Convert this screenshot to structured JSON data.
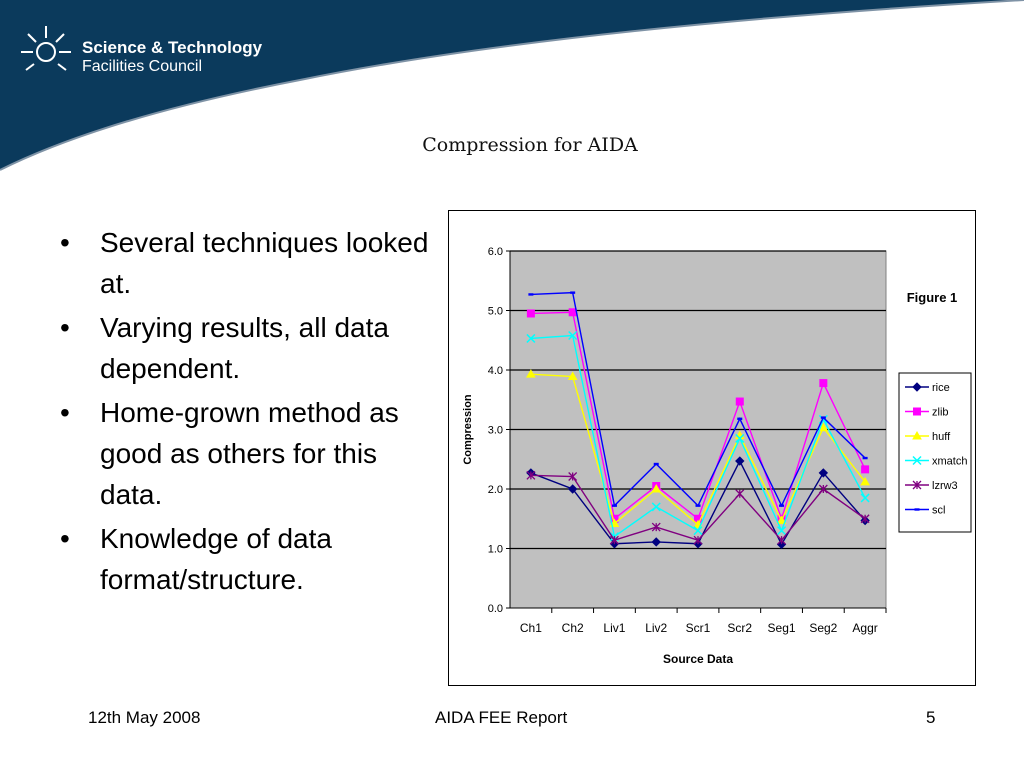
{
  "org": {
    "line1": "Science & Technology",
    "line2": "Facilities Council"
  },
  "slide": {
    "title": "Compression for AIDA",
    "bullets": [
      "Several techniques looked at.",
      "Varying results, all data dependent.",
      "Home-grown method as good as others for this data.",
      "Knowledge of data format/structure."
    ],
    "bullet_glyph": "•"
  },
  "footer": {
    "date": "12th May 2008",
    "report": "AIDA FEE Report",
    "page": "5"
  },
  "colors": {
    "banner": "#0b3a5c",
    "plot_bg": "#c0c0c0"
  },
  "chart_data": {
    "type": "line",
    "title": "",
    "annotation": "Figure 1",
    "xlabel": "Source Data",
    "ylabel": "Compression",
    "ylim": [
      0,
      6
    ],
    "yticks": [
      "0.0",
      "1.0",
      "2.0",
      "3.0",
      "4.0",
      "5.0",
      "6.0"
    ],
    "grid": true,
    "legend_position": "right",
    "categories": [
      "Ch1",
      "Ch2",
      "Liv1",
      "Liv2",
      "Scr1",
      "Scr2",
      "Seg1",
      "Seg2",
      "Aggr"
    ],
    "series": [
      {
        "name": "rice",
        "color": "#000080",
        "marker": "diamond",
        "values": [
          2.27,
          2.0,
          1.08,
          1.11,
          1.08,
          2.47,
          1.07,
          2.27,
          1.47
        ]
      },
      {
        "name": "zlib",
        "color": "#ff00ff",
        "marker": "square",
        "values": [
          4.95,
          4.97,
          1.5,
          2.05,
          1.5,
          3.47,
          1.5,
          3.78,
          2.33
        ]
      },
      {
        "name": "huff",
        "color": "#ffff00",
        "marker": "triangle",
        "values": [
          3.93,
          3.89,
          1.42,
          2.0,
          1.4,
          2.9,
          1.47,
          3.03,
          2.12
        ]
      },
      {
        "name": "xmatch",
        "color": "#00ffff",
        "marker": "x",
        "values": [
          4.53,
          4.58,
          1.2,
          1.7,
          1.3,
          2.85,
          1.3,
          3.17,
          1.85
        ]
      },
      {
        "name": "lzrw3",
        "color": "#800080",
        "marker": "star",
        "values": [
          2.23,
          2.21,
          1.14,
          1.36,
          1.14,
          1.92,
          1.14,
          2.0,
          1.5
        ]
      },
      {
        "name": "scl",
        "color": "#0000ff",
        "marker": "dash",
        "values": [
          5.27,
          5.3,
          1.72,
          2.42,
          1.72,
          3.18,
          1.72,
          3.2,
          2.52
        ]
      }
    ]
  }
}
